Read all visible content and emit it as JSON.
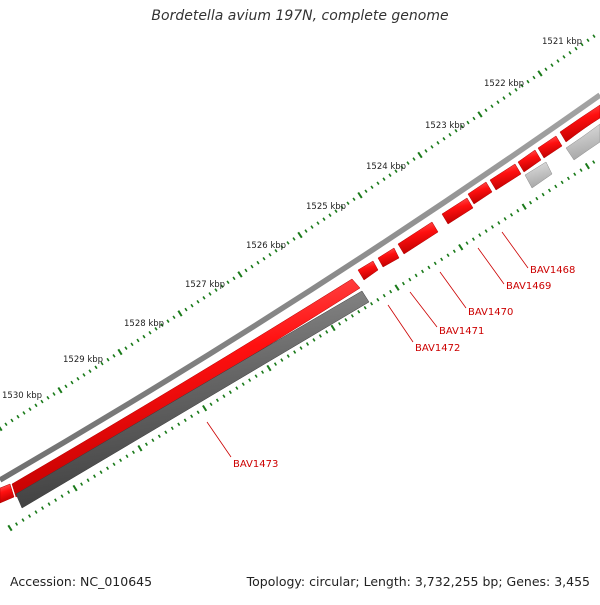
{
  "title": "Bordetella avium 197N, complete genome",
  "accession": "Accession: NC_010645",
  "summary": "Topology: circular; Length: 3,732,255 bp; Genes: 3,455",
  "scale_labels": [
    "1521 kbp",
    "1522 kbp",
    "1523 kbp",
    "1524 kbp",
    "1525 kbp",
    "1526 kbp",
    "1527 kbp",
    "1528 kbp",
    "1529 kbp",
    "1530 kbp"
  ],
  "genes": [
    "BAV1468",
    "BAV1469",
    "BAV1470",
    "BAV1471",
    "BAV1472",
    "BAV1473"
  ],
  "colors": {
    "forward_gene": "#ff1a1a",
    "reverse_gene": "#666666",
    "label": "#cc0000",
    "tick": "#1a7a1a",
    "backbone": "#888888"
  }
}
